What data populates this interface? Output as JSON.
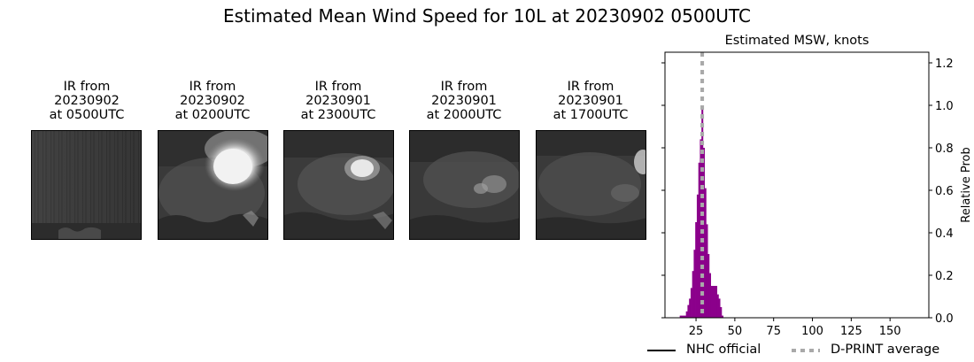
{
  "figure": {
    "suptitle": "Estimated Mean Wind Speed for 10L at 20230902 0500UTC"
  },
  "ir_panels": [
    {
      "line1": "IR from",
      "line2": "20230902",
      "line3": "at 0500UTC"
    },
    {
      "line1": "IR from",
      "line2": "20230902",
      "line3": "at 0200UTC"
    },
    {
      "line1": "IR from",
      "line2": "20230901",
      "line3": "at 2300UTC"
    },
    {
      "line1": "IR from",
      "line2": "20230901",
      "line3": "at 2000UTC"
    },
    {
      "line1": "IR from",
      "line2": "20230901",
      "line3": "at 1700UTC"
    }
  ],
  "chart_data": {
    "type": "bar",
    "title": "Estimated MSW, knots",
    "ylabel": "Relative Prob",
    "xlabel": "",
    "xlim": [
      5,
      175
    ],
    "ylim": [
      0,
      1.25
    ],
    "xticks": [
      25,
      50,
      75,
      100,
      125,
      150
    ],
    "yticks": [
      0.0,
      0.2,
      0.4,
      0.6,
      0.8,
      1.0,
      1.2
    ],
    "bin_width": 1,
    "bins": [
      {
        "x": 15,
        "y": 0.01
      },
      {
        "x": 16,
        "y": 0.01
      },
      {
        "x": 17,
        "y": 0.01
      },
      {
        "x": 18,
        "y": 0.01
      },
      {
        "x": 19,
        "y": 0.03
      },
      {
        "x": 20,
        "y": 0.06
      },
      {
        "x": 21,
        "y": 0.09
      },
      {
        "x": 22,
        "y": 0.14
      },
      {
        "x": 23,
        "y": 0.22
      },
      {
        "x": 24,
        "y": 0.32
      },
      {
        "x": 25,
        "y": 0.45
      },
      {
        "x": 26,
        "y": 0.58
      },
      {
        "x": 27,
        "y": 0.73
      },
      {
        "x": 28,
        "y": 0.84
      },
      {
        "x": 29,
        "y": 1.0
      },
      {
        "x": 30,
        "y": 0.8
      },
      {
        "x": 31,
        "y": 0.61
      },
      {
        "x": 32,
        "y": 0.44
      },
      {
        "x": 33,
        "y": 0.3
      },
      {
        "x": 34,
        "y": 0.21
      },
      {
        "x": 35,
        "y": 0.15
      },
      {
        "x": 36,
        "y": 0.15
      },
      {
        "x": 37,
        "y": 0.15
      },
      {
        "x": 38,
        "y": 0.15
      },
      {
        "x": 39,
        "y": 0.11
      },
      {
        "x": 40,
        "y": 0.09
      },
      {
        "x": 41,
        "y": 0.05
      },
      {
        "x": 42,
        "y": 0.01
      }
    ],
    "dprint_average": 29,
    "bar_color": "#8b008b",
    "dprint_color": "#a9a9a9",
    "nhc_color": "#000000",
    "legend": {
      "nhc_label": "NHC official",
      "dprint_label": "D-PRINT average",
      "placement": "bottom"
    }
  }
}
